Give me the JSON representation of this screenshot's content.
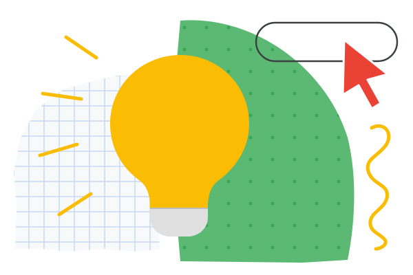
{
  "scene": {
    "background_color": "#ffffff",
    "grid_paper_color": "#f8f9fa",
    "grid_line_color": "#c6d9f1",
    "green_shape_color": "#5bb974",
    "green_dot_color": "#34a853",
    "bulb_color": "#fbbc04",
    "bulb_base_color": "#e0e0e0",
    "bulb_base_shadow_color": "#bdbdbd",
    "search_pill_stroke_color": "#3c4043",
    "cursor_color": "#ea4335",
    "cursor_outline_color": "#ffffff",
    "doodle_color": "#fbbc04"
  },
  "icons": {
    "bulb": "lightbulb-icon",
    "cursor": "mouse-pointer-icon",
    "pill": "search-bar-outline-icon",
    "squiggle": "squiggle-doodle-icon"
  }
}
